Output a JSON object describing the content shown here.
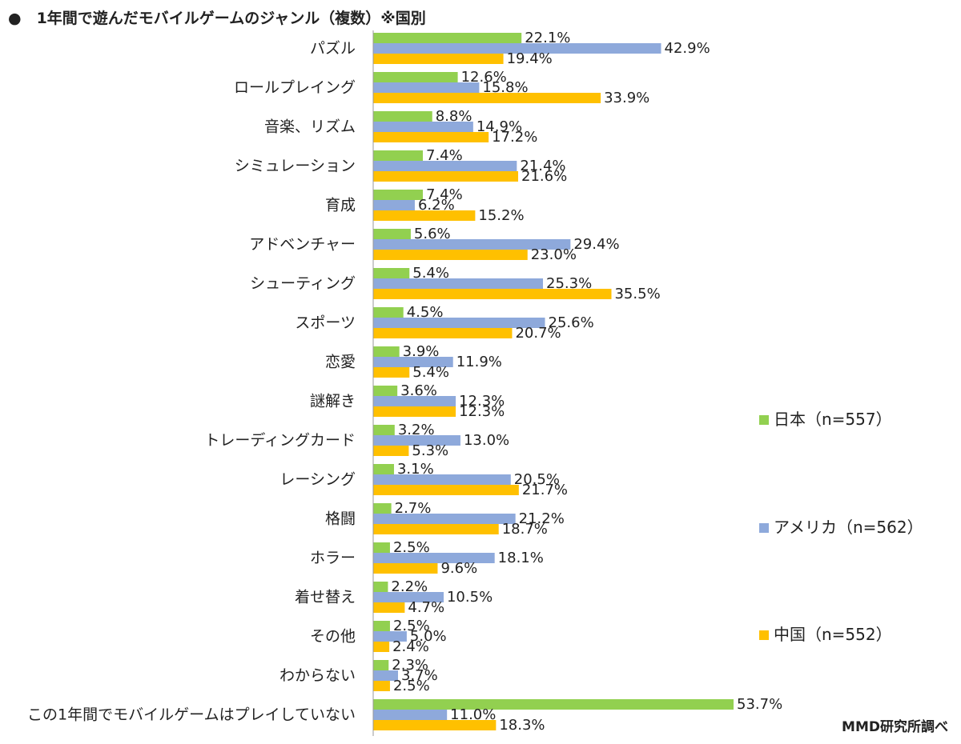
{
  "chart_data": {
    "type": "bar",
    "orientation": "horizontal",
    "title": "●　1年間で遊んだモバイルゲームのジャンル（複数）※国別",
    "source": "MMD研究所調べ",
    "legend_position": "right",
    "categories": [
      "パズル",
      "ロールプレイング",
      "音楽、リズム",
      "シミュレーション",
      "育成",
      "アドベンチャー",
      "シューティング",
      "スポーツ",
      "恋愛",
      "謎解き",
      "トレーディングカード",
      "レーシング",
      "格闘",
      "ホラー",
      "着せ替え",
      "その他",
      "わからない",
      "この1年間でモバイルゲームはプレイしていない"
    ],
    "series": [
      {
        "name": "日本（n=557）",
        "color": "#92d050",
        "values": [
          22.1,
          12.6,
          8.8,
          7.4,
          7.4,
          5.6,
          5.4,
          4.5,
          3.9,
          3.6,
          3.2,
          3.1,
          2.7,
          2.5,
          2.2,
          2.5,
          2.3,
          53.7
        ],
        "labels": [
          "22.1%",
          "12.6%",
          "8.8%",
          "7.4%",
          "7.4%",
          "5.6%",
          "5.4%",
          "4.5%",
          "3.9%",
          "3.6%",
          "3.2%",
          "3.1%",
          "2.7%",
          "2.5%",
          "2.2%",
          "2.5%",
          "2.3%",
          "53.7%"
        ]
      },
      {
        "name": "アメリカ（n=562）",
        "color": "#8ea9db",
        "values": [
          42.9,
          15.8,
          14.9,
          21.4,
          6.2,
          29.4,
          25.3,
          25.6,
          11.9,
          12.3,
          13.0,
          20.5,
          21.2,
          18.1,
          10.5,
          5.0,
          3.7,
          11.0
        ],
        "labels": [
          "42.9%",
          "15.8%",
          "14.9%",
          "21.4%",
          "6.2%",
          "29.4%",
          "25.3%",
          "25.6%",
          "11.9%",
          "12.3%",
          "13.0%",
          "20.5%",
          "21.2%",
          "18.1%",
          "10.5%",
          "5.0%",
          "3.7%",
          "11.0%"
        ]
      },
      {
        "name": "中国（n=552）",
        "color": "#ffc000",
        "values": [
          19.4,
          33.9,
          17.2,
          21.6,
          15.2,
          23.0,
          35.5,
          20.7,
          5.4,
          12.3,
          5.3,
          21.7,
          18.7,
          9.6,
          4.7,
          2.4,
          2.5,
          18.3
        ],
        "labels": [
          "19.4%",
          "33.9%",
          "17.2%",
          "21.6%",
          "15.2%",
          "23.0%",
          "35.5%",
          "20.7%",
          "5.4%",
          "12.3%",
          "5.3%",
          "21.7%",
          "18.7%",
          "9.6%",
          "4.7%",
          "2.4%",
          "2.5%",
          "18.3%"
        ]
      }
    ],
    "xlim": [
      0,
      60
    ],
    "grid": false
  }
}
